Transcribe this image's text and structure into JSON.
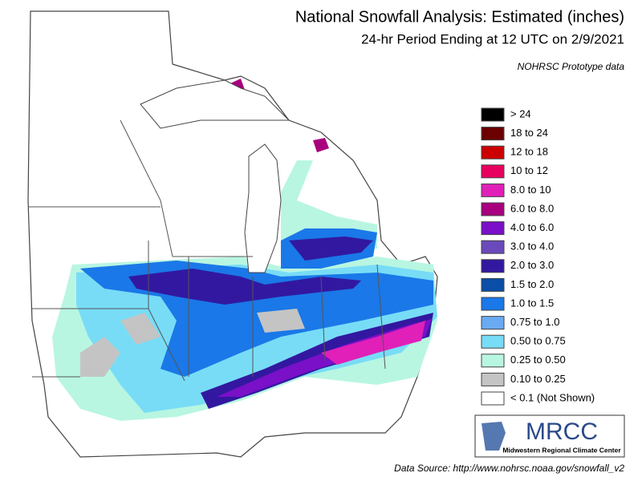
{
  "header": {
    "title": "National Snowfall Analysis: Estimated (inches)",
    "subtitle": "24-hr Period Ending at 12 UTC on 2/9/2021",
    "note": "NOHRSC Prototype data"
  },
  "legend": {
    "items": [
      {
        "label": "> 24",
        "color": "#000000"
      },
      {
        "label": "18 to 24",
        "color": "#6b0000"
      },
      {
        "label": "12 to 18",
        "color": "#cc0000"
      },
      {
        "label": "10 to 12",
        "color": "#e8005e"
      },
      {
        "label": "8.0 to 10",
        "color": "#e020b8"
      },
      {
        "label": "6.0 to 8.0",
        "color": "#a8007e"
      },
      {
        "label": "4.0 to 6.0",
        "color": "#7a10c8"
      },
      {
        "label": "3.0 to 4.0",
        "color": "#6a4aba"
      },
      {
        "label": "2.0 to 3.0",
        "color": "#3218a0"
      },
      {
        "label": "1.5 to 2.0",
        "color": "#0a4ea8"
      },
      {
        "label": "1.0 to 1.5",
        "color": "#1a78e8"
      },
      {
        "label": "0.75 to 1.0",
        "color": "#6aaaf2"
      },
      {
        "label": "0.50 to 0.75",
        "color": "#78dcf6"
      },
      {
        "label": "0.25 to 0.50",
        "color": "#b8f6e2"
      },
      {
        "label": "0.10 to 0.25",
        "color": "#c4c4c4"
      },
      {
        "label": "< 0.1 (Not Shown)",
        "color": "#ffffff"
      }
    ]
  },
  "logo": {
    "name": "MRCC",
    "caption": "Midwestern Regional Climate Center"
  },
  "footer": {
    "source": "Data Source: http://www.nohrsc.noaa.gov/snowfall_v2"
  }
}
